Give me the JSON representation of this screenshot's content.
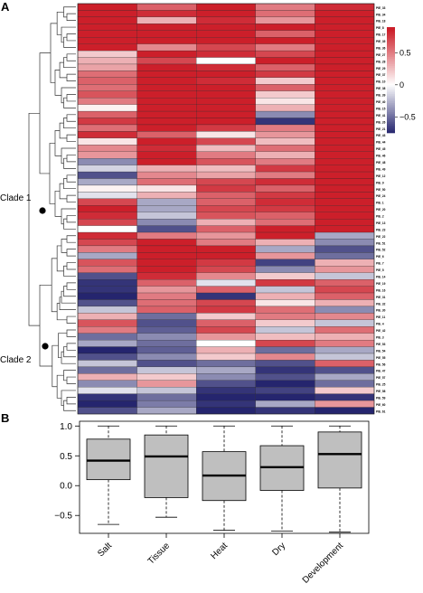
{
  "panels": {
    "a": "A",
    "b": "B"
  },
  "clades": {
    "clade1": "Clade 1",
    "clade2": "Clade 2"
  },
  "colors": {
    "high": "#cc1f2a",
    "mid": "#ffffff",
    "low": "#25256e",
    "box_fill": "#bfbfbf"
  },
  "chart_data": [
    {
      "type": "heatmap",
      "title": "",
      "columns": [
        "Salt",
        "Tissue",
        "Heat",
        "Dry",
        "Development"
      ],
      "colorbar": {
        "range": [
          -0.75,
          0.9
        ],
        "ticks": [
          0.5,
          0,
          -0.5
        ],
        "tick_labels": [
          "0.5",
          "0",
          "−0.5"
        ]
      },
      "rows": [
        {
          "label": "PIE_33",
          "values": [
            0.85,
            0.6,
            0.85,
            0.5,
            0.8
          ]
        },
        {
          "label": "PIE_34",
          "values": [
            0.9,
            0.8,
            0.9,
            0.55,
            0.85
          ]
        },
        {
          "label": "PIE_18",
          "values": [
            0.85,
            0.3,
            0.8,
            0.4,
            0.9
          ]
        },
        {
          "label": "PIE_8",
          "values": [
            0.9,
            0.85,
            0.85,
            0.85,
            0.9
          ]
        },
        {
          "label": "PIE_17",
          "values": [
            0.9,
            0.9,
            0.9,
            0.6,
            0.85
          ]
        },
        {
          "label": "PIE_35",
          "values": [
            0.9,
            0.85,
            0.9,
            0.85,
            0.9
          ]
        },
        {
          "label": "PIE_36",
          "values": [
            0.85,
            0.45,
            0.7,
            0.5,
            0.85
          ]
        },
        {
          "label": "PIE_27",
          "values": [
            0.2,
            0.85,
            0.8,
            0.7,
            0.85
          ]
        },
        {
          "label": "PIE_28",
          "values": [
            0.3,
            0.7,
            0.0,
            0.85,
            0.9
          ]
        },
        {
          "label": "PIE_29",
          "values": [
            0.35,
            0.9,
            0.8,
            0.6,
            0.85
          ]
        },
        {
          "label": "PIE_37",
          "values": [
            0.55,
            0.9,
            0.85,
            0.75,
            0.85
          ]
        },
        {
          "label": "PIE_10",
          "values": [
            0.6,
            0.85,
            0.8,
            0.2,
            0.9
          ]
        },
        {
          "label": "PIE_38",
          "values": [
            0.55,
            0.85,
            0.85,
            0.6,
            0.9
          ]
        },
        {
          "label": "PIE_39",
          "values": [
            0.65,
            0.9,
            0.85,
            0.2,
            0.85
          ]
        },
        {
          "label": "PIE_40",
          "values": [
            0.5,
            0.85,
            0.85,
            0.1,
            0.9
          ]
        },
        {
          "label": "PIE_15",
          "values": [
            0.05,
            0.85,
            0.85,
            0.3,
            0.85
          ]
        },
        {
          "label": "PIE_41",
          "values": [
            0.6,
            0.9,
            0.85,
            -0.4,
            0.9
          ]
        },
        {
          "label": "PIE_26",
          "values": [
            0.75,
            0.9,
            0.9,
            -0.7,
            0.85
          ]
        },
        {
          "label": "PIE_21",
          "values": [
            0.55,
            0.9,
            0.75,
            0.5,
            0.9
          ]
        },
        {
          "label": "PIE_43",
          "values": [
            0.8,
            0.6,
            0.1,
            0.4,
            0.85
          ]
        },
        {
          "label": "PIE_44",
          "values": [
            0.1,
            0.9,
            0.7,
            0.25,
            0.9
          ]
        },
        {
          "label": "PIE_45",
          "values": [
            0.45,
            0.8,
            0.25,
            0.55,
            0.85
          ]
        },
        {
          "label": "PIE_46",
          "values": [
            0.4,
            0.85,
            0.5,
            0.3,
            0.9
          ]
        },
        {
          "label": "PIE_48",
          "values": [
            -0.4,
            0.9,
            0.65,
            0.5,
            0.85
          ]
        },
        {
          "label": "PIE_49",
          "values": [
            -0.15,
            0.3,
            0.25,
            0.75,
            0.9
          ]
        },
        {
          "label": "PIE_12",
          "values": [
            -0.6,
            0.45,
            0.35,
            0.5,
            0.85
          ]
        },
        {
          "label": "PIE_9",
          "values": [
            -0.3,
            0.55,
            0.7,
            0.8,
            0.9
          ]
        },
        {
          "label": "PIE_50",
          "values": [
            0.05,
            0.1,
            0.75,
            0.6,
            0.85
          ]
        },
        {
          "label": "PIE_24",
          "values": [
            -0.1,
            0.3,
            0.6,
            0.75,
            0.9
          ]
        },
        {
          "label": "PIE_1",
          "values": [
            0.7,
            -0.3,
            0.6,
            0.8,
            0.85
          ]
        },
        {
          "label": "PIE_20",
          "values": [
            0.85,
            -0.3,
            0.7,
            0.75,
            0.9
          ]
        },
        {
          "label": "PIE_2",
          "values": [
            0.8,
            -0.2,
            0.65,
            0.6,
            0.85
          ]
        },
        {
          "label": "PIE_13",
          "values": [
            0.7,
            -0.4,
            0.3,
            0.55,
            0.9
          ]
        },
        {
          "label": "PIE_23",
          "values": [
            0.0,
            -0.6,
            0.6,
            0.85,
            0.85
          ]
        },
        {
          "label": "PIE_22",
          "values": [
            0.8,
            0.5,
            0.4,
            0.85,
            -0.3
          ]
        },
        {
          "label": "PIE_51",
          "values": [
            0.7,
            0.85,
            0.5,
            0.3,
            -0.4
          ]
        },
        {
          "label": "PIE_52",
          "values": [
            0.5,
            0.9,
            0.85,
            -0.3,
            -0.6
          ]
        },
        {
          "label": "PIE_6",
          "values": [
            -0.3,
            0.9,
            0.85,
            0.4,
            -0.5
          ]
        },
        {
          "label": "PIE_7",
          "values": [
            0.65,
            0.85,
            0.75,
            -0.65,
            0.3
          ]
        },
        {
          "label": "PIE_5",
          "values": [
            0.55,
            0.9,
            0.7,
            -0.4,
            0.4
          ]
        },
        {
          "label": "PIE_14",
          "values": [
            -0.6,
            0.8,
            0.45,
            0.2,
            -0.2
          ]
        },
        {
          "label": "PIE_19",
          "values": [
            -0.7,
            0.6,
            -0.1,
            0.75,
            0.6
          ]
        },
        {
          "label": "PIE_16",
          "values": [
            -0.7,
            0.4,
            0.6,
            -0.2,
            0.7
          ]
        },
        {
          "label": "PIE_31",
          "values": [
            -0.75,
            0.5,
            -0.7,
            0.3,
            0.6
          ]
        },
        {
          "label": "PIE_32",
          "values": [
            -0.6,
            0.55,
            0.7,
            0.1,
            0.3
          ]
        },
        {
          "label": "PIE_30",
          "values": [
            -0.2,
            0.6,
            0.75,
            0.55,
            -0.4
          ]
        },
        {
          "label": "PIE_11",
          "values": [
            0.3,
            -0.5,
            0.2,
            0.5,
            0.45
          ]
        },
        {
          "label": "PIE_4",
          "values": [
            0.65,
            -0.6,
            0.6,
            0.2,
            -0.2
          ]
        },
        {
          "label": "PIE_42",
          "values": [
            0.5,
            -0.55,
            0.7,
            -0.2,
            0.55
          ]
        },
        {
          "label": "PIE_3",
          "values": [
            -0.5,
            -0.4,
            0.4,
            0.25,
            0.3
          ]
        },
        {
          "label": "PIE_53",
          "values": [
            -0.3,
            -0.5,
            0.0,
            0.7,
            0.5
          ]
        },
        {
          "label": "PIE_54",
          "values": [
            -0.75,
            -0.55,
            0.3,
            -0.5,
            -0.3
          ]
        },
        {
          "label": "PIE_55",
          "values": [
            -0.6,
            -0.4,
            0.2,
            0.45,
            -0.2
          ]
        },
        {
          "label": "PIE_56",
          "values": [
            -0.2,
            -0.6,
            -0.5,
            -0.6,
            0.6
          ]
        },
        {
          "label": "PIE_47",
          "values": [
            -0.5,
            -0.2,
            -0.3,
            -0.7,
            -0.6
          ]
        },
        {
          "label": "PIE_57",
          "values": [
            0.3,
            0.2,
            -0.4,
            -0.6,
            -0.3
          ]
        },
        {
          "label": "PIE_25",
          "values": [
            -0.4,
            0.4,
            -0.6,
            -0.75,
            -0.5
          ]
        },
        {
          "label": "PIE_58",
          "values": [
            -0.1,
            -0.2,
            -0.7,
            -0.65,
            0.2
          ]
        },
        {
          "label": "PIE_59",
          "values": [
            -0.7,
            -0.5,
            -0.75,
            -0.75,
            -0.7
          ]
        },
        {
          "label": "PIE_60",
          "values": [
            -0.75,
            -0.45,
            -0.7,
            -0.3,
            0.4
          ]
        },
        {
          "label": "PIE_61",
          "values": [
            -0.6,
            -0.3,
            -0.75,
            -0.7,
            -0.75
          ]
        }
      ]
    },
    {
      "type": "box",
      "title": "",
      "xlabel": "",
      "ylabel": "",
      "categories": [
        "Salt",
        "Tissue",
        "Heat",
        "Dry",
        "Development"
      ],
      "ylim": [
        -0.8,
        1.08
      ],
      "yticks": [
        1.0,
        0.5,
        0.0,
        -0.5
      ],
      "ytick_labels": [
        "1.0",
        "0.5",
        "0.0",
        "−0.5"
      ],
      "boxes": [
        {
          "min": -0.65,
          "q1": 0.1,
          "median": 0.42,
          "q3": 0.78,
          "max": 1.0
        },
        {
          "min": -0.53,
          "q1": -0.2,
          "median": 0.49,
          "q3": 0.85,
          "max": 1.0
        },
        {
          "min": -0.75,
          "q1": -0.25,
          "median": 0.17,
          "q3": 0.57,
          "max": 1.0
        },
        {
          "min": -0.76,
          "q1": -0.08,
          "median": 0.31,
          "q3": 0.67,
          "max": 1.0
        },
        {
          "min": -0.78,
          "q1": -0.04,
          "median": 0.53,
          "q3": 0.9,
          "max": 1.0
        }
      ]
    }
  ]
}
